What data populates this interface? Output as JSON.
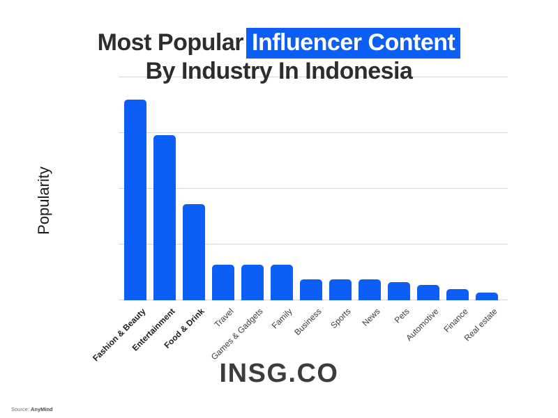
{
  "title": {
    "prefix": "Most Popular",
    "highlight": "Influencer Content",
    "line2": "By Industry In Indonesia"
  },
  "ylabel": "Popularity",
  "footer": {
    "logo": "INSG.CO"
  },
  "source": {
    "label": "Source:",
    "name": "AnyMind"
  },
  "colors": {
    "accent_blue": "#0d5ef4",
    "title_text": "#2d2d2d",
    "highlight_text": "#ffffff",
    "gridline": "#d6d6d6",
    "bold_label": "#1d1d1d",
    "regular_label": "#3c3c3c",
    "logo_text": "#3c3c3c"
  },
  "chart_data": {
    "type": "bar",
    "title": "Most Popular Influencer Content By Industry In Indonesia",
    "categories": [
      "Fashion & Beauty",
      "Entertainment",
      "Food & Drink",
      "Travel",
      "Games & Gadgets",
      "Family",
      "Business",
      "Sports",
      "News",
      "Pets",
      "Automotive",
      "Finance",
      "Real estate"
    ],
    "values": [
      90,
      74,
      43,
      16,
      16,
      16,
      9.5,
      9.5,
      9.5,
      8,
      7,
      5,
      3.5
    ],
    "xlabel": "",
    "ylabel": "Popularity",
    "ylim": [
      0,
      100
    ],
    "gridlines": [
      0,
      25,
      50,
      75,
      100
    ],
    "grid": "horizontal, unlabeled ticks",
    "x_label_rotation_deg": 45,
    "emphasized_categories": [
      "Fashion & Beauty",
      "Entertainment",
      "Food & Drink"
    ],
    "bar_color": "#0d5ef4",
    "legend": "none"
  }
}
